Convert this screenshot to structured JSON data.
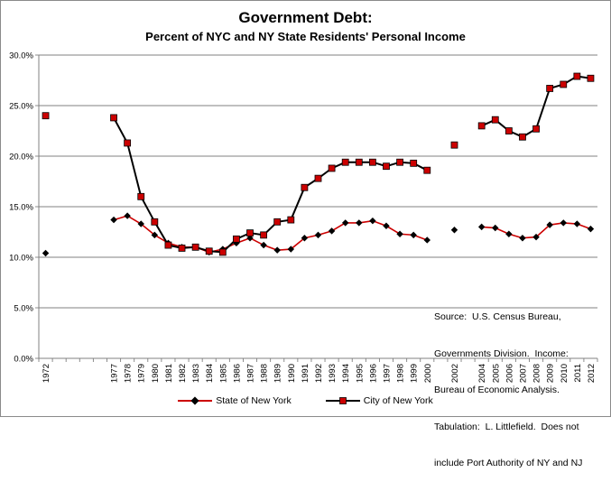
{
  "chart_data": {
    "type": "line",
    "title": "Government Debt:",
    "subtitle": "Percent of NYC and NY State Residents' Personal Income",
    "xlabel": "",
    "ylabel": "",
    "ylim": [
      0,
      30
    ],
    "yticks": [
      "0.0%",
      "5.0%",
      "10.0%",
      "15.0%",
      "20.0%",
      "25.0%",
      "30.0%"
    ],
    "categories": [
      "1972",
      "",
      "",
      "",
      "",
      "1977",
      "1978",
      "1979",
      "1980",
      "1981",
      "1982",
      "1983",
      "1984",
      "1985",
      "1986",
      "1987",
      "1988",
      "1989",
      "1990",
      "1991",
      "1992",
      "1993",
      "1994",
      "1995",
      "1996",
      "1997",
      "1998",
      "1999",
      "2000",
      "",
      "2002",
      "",
      "2004",
      "2005",
      "2006",
      "2007",
      "2008",
      "2009",
      "2010",
      "2011",
      "2012"
    ],
    "grid": "horizontal",
    "legend_position": "bottom",
    "series": [
      {
        "name": "State of New York",
        "color": "#cc0000",
        "marker": "diamond",
        "values": [
          10.4,
          null,
          null,
          null,
          null,
          13.7,
          14.1,
          13.3,
          12.2,
          11.4,
          11.0,
          11.0,
          10.5,
          10.8,
          11.4,
          11.9,
          11.2,
          10.7,
          10.8,
          11.9,
          12.2,
          12.6,
          13.4,
          13.4,
          13.6,
          13.1,
          12.3,
          12.2,
          11.7,
          null,
          12.7,
          null,
          13.0,
          12.9,
          12.3,
          11.9,
          12.0,
          13.2,
          13.4,
          13.3,
          12.8
        ]
      },
      {
        "name": "City of New York",
        "color": "#cc0000",
        "marker": "square",
        "values": [
          24.0,
          null,
          null,
          null,
          null,
          23.8,
          21.3,
          16.0,
          13.5,
          11.2,
          10.9,
          11.0,
          10.6,
          10.5,
          11.8,
          12.4,
          12.2,
          13.5,
          13.7,
          16.9,
          17.8,
          18.8,
          19.4,
          19.4,
          19.4,
          19.0,
          19.4,
          19.3,
          18.6,
          null,
          21.1,
          null,
          23.0,
          23.6,
          22.5,
          21.9,
          22.7,
          26.7,
          27.1,
          27.9,
          27.7
        ]
      }
    ],
    "annotation": [
      "Source:  U.S. Census Bureau,",
      "Governments Division.  Income:",
      "Bureau of Economic Analysis.",
      "Tabulation:  L. Littlefield.  Does not",
      "include Port Authority of NY and NJ"
    ]
  }
}
